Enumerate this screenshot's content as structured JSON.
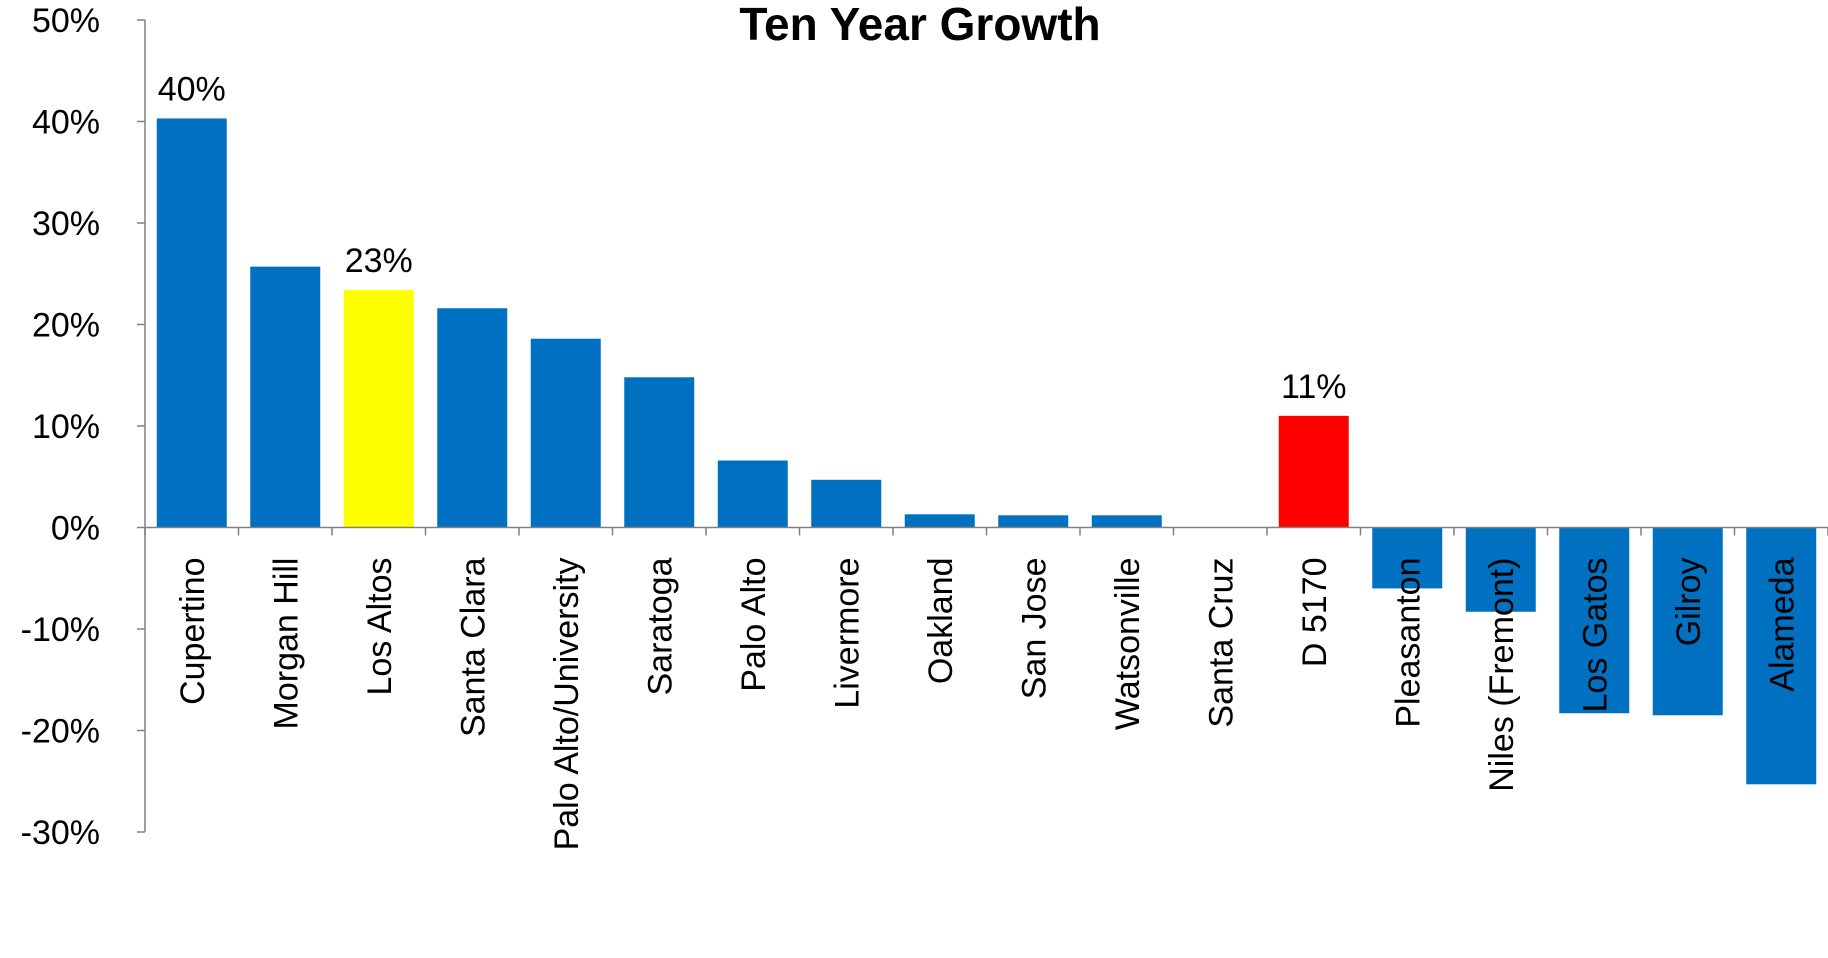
{
  "chart_data": {
    "type": "bar",
    "title": "Ten Year Growth",
    "xlabel": "",
    "ylabel": "",
    "ylim": [
      -30,
      50
    ],
    "yticks": [
      50,
      40,
      30,
      20,
      10,
      0,
      -10,
      -20,
      -30
    ],
    "ytick_labels": [
      "50%",
      "40%",
      "30%",
      "20%",
      "10%",
      "0%",
      "-10%",
      "-20%",
      "-30%"
    ],
    "grid": false,
    "legend": "none",
    "categories": [
      "Cupertino",
      "Morgan Hill",
      "Los Altos",
      "Santa Clara",
      "Palo Alto/University",
      "Saratoga",
      "Palo Alto",
      "Livermore",
      "Oakland",
      "San Jose",
      "Watsonville",
      "Santa Cruz",
      "D 5170",
      "Pleasanton",
      "Niles (Fremont)",
      "Los Gatos",
      "Gilroy",
      "Alameda"
    ],
    "values": [
      40.3,
      25.7,
      23.4,
      21.6,
      18.6,
      14.8,
      6.6,
      4.7,
      1.3,
      1.2,
      1.2,
      0,
      11.0,
      -6.0,
      -8.3,
      -18.3,
      -18.5,
      -25.3
    ],
    "colors": [
      "#0070C0",
      "#0070C0",
      "#FFFF00",
      "#0070C0",
      "#0070C0",
      "#0070C0",
      "#0070C0",
      "#0070C0",
      "#0070C0",
      "#0070C0",
      "#0070C0",
      "#0070C0",
      "#FF0000",
      "#0070C0",
      "#0070C0",
      "#0070C0",
      "#0070C0",
      "#0070C0"
    ],
    "data_labels": [
      "40%",
      "",
      "23%",
      "",
      "",
      "",
      "",
      "",
      "",
      "",
      "",
      "",
      "11%",
      "",
      "",
      "",
      "",
      ""
    ]
  }
}
